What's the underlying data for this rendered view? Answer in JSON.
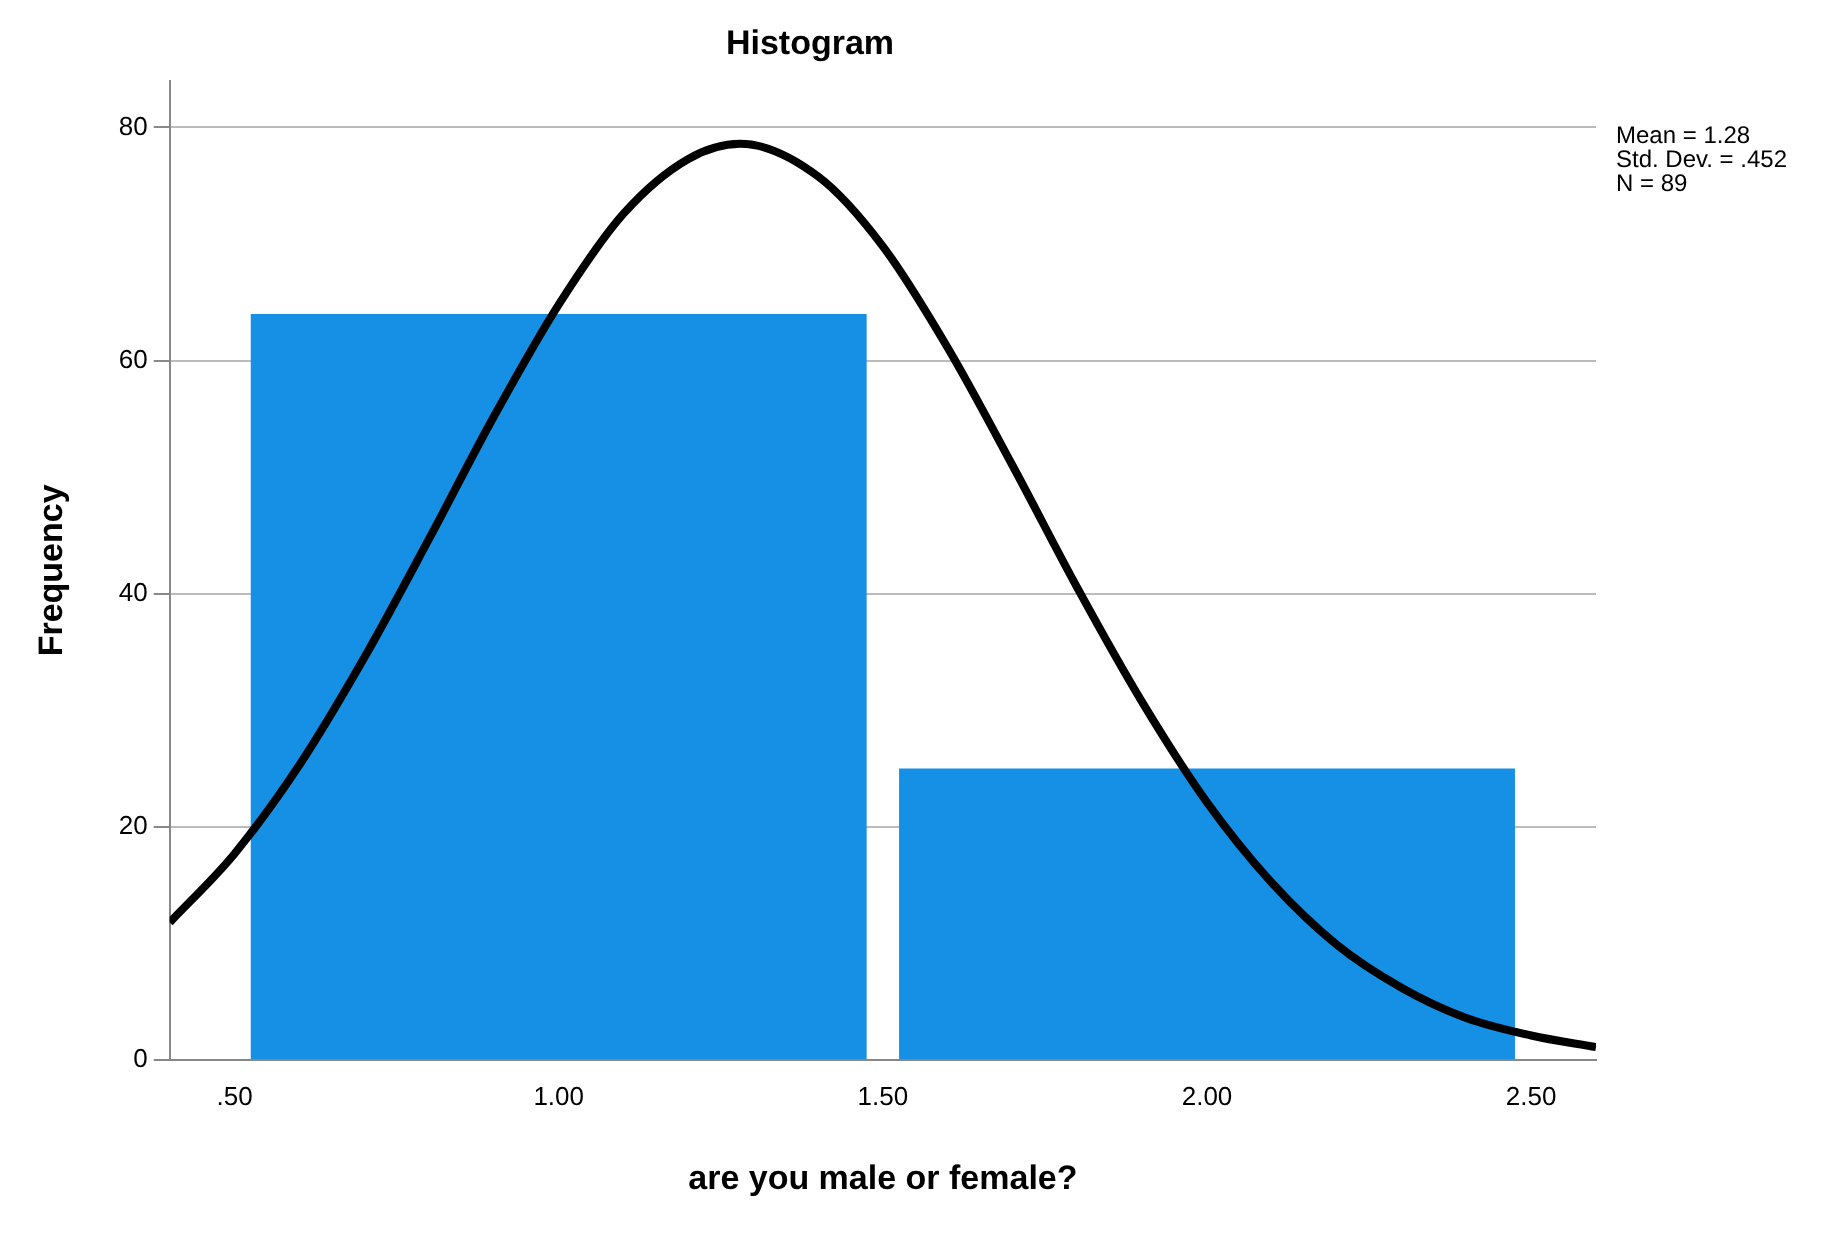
{
  "chart_data": {
    "type": "histogram",
    "title": "Histogram",
    "xlabel": "are you male or female?",
    "ylabel": "Frequency",
    "annotations": [
      "Mean = 1.28",
      "Std. Dev. = .452",
      "N = 89"
    ],
    "bins": [
      0.5,
      1.5,
      2.5
    ],
    "series": [
      {
        "color": "#1590e5",
        "values": [
          64,
          25
        ]
      },
      {
        "type": "line",
        "color": "#000000",
        "x": [
          0.4,
          0.5,
          0.6,
          0.7,
          0.8,
          0.9,
          1.0,
          1.1,
          1.2,
          1.28,
          1.4,
          1.5,
          1.6,
          1.7,
          1.8,
          1.9,
          2.0,
          2.1,
          2.2,
          2.3,
          2.4,
          2.5,
          2.6
        ],
        "values": [
          11.8,
          17.7,
          25.3,
          34.5,
          44.7,
          55.2,
          64.8,
          72.6,
          77.3,
          78.6,
          75.8,
          69.8,
          61.1,
          51.0,
          40.5,
          30.7,
          22.1,
          15.2,
          9.9,
          6.2,
          3.6,
          2.1,
          1.1
        ]
      }
    ],
    "xlim": [
      0.4,
      2.6
    ],
    "ylim": [
      0,
      84
    ],
    "xticks": [
      {
        "value": 0.5,
        "label": ".50"
      },
      {
        "value": 1,
        "label": "1.00"
      },
      {
        "value": 1.5,
        "label": "1.50"
      },
      {
        "value": 2,
        "label": "2.00"
      },
      {
        "value": 2.5,
        "label": "2.50"
      }
    ],
    "yticks": [
      0,
      20,
      40,
      60,
      80
    ],
    "grid": "y",
    "marker": "none",
    "line_style": "solid"
  }
}
